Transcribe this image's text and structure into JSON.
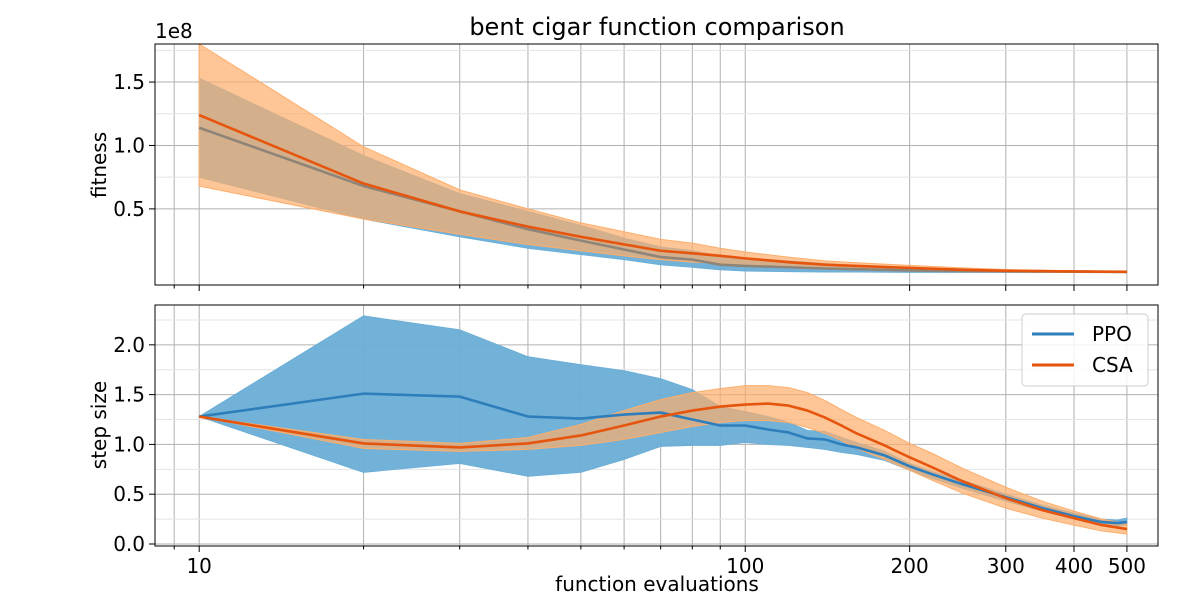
{
  "chart_data": {
    "title": "bent cigar function comparison",
    "xlabel": "function evaluations",
    "x_scale": "log",
    "x_tick_labels": [
      "10",
      "100",
      "200",
      "300",
      "400",
      "500"
    ],
    "grid": true,
    "legend_position": "upper-right (lower panel)",
    "colors": {
      "ppo": "#2e7ebc",
      "ppo_band": "#6baed6",
      "csa": "#e6550d",
      "csa_band": "#fdae6b",
      "overlap_band": "#b89a86"
    },
    "panels": [
      {
        "id": "fitness",
        "type": "line",
        "ylabel": "fitness",
        "y_offset_label": "1e8",
        "y_tick_labels": [
          "0.5",
          "1.0",
          "1.5"
        ],
        "y_ticks": [
          0.5,
          1.0,
          1.5
        ],
        "ylim": [
          -0.1,
          1.8
        ],
        "series": [
          {
            "name": "PPO",
            "x": [
              10,
              20,
              30,
              40,
              50,
              60,
              70,
              80,
              90,
              100,
              120,
              140,
              160,
              200,
              250,
              300,
              400,
              500
            ],
            "mean": [
              1.14,
              0.68,
              0.48,
              0.34,
              0.25,
              0.18,
              0.12,
              0.1,
              0.06,
              0.05,
              0.04,
              0.03,
              0.025,
              0.015,
              0.01,
              0.008,
              0.005,
              0.003
            ],
            "lower": [
              0.75,
              0.42,
              0.28,
              0.19,
              0.14,
              0.1,
              0.06,
              0.04,
              0.02,
              0.01,
              0.005,
              0.003,
              0.002,
              0.0,
              0.0,
              0.0,
              0.0,
              0.0
            ],
            "upper": [
              1.53,
              0.92,
              0.62,
              0.48,
              0.37,
              0.27,
              0.2,
              0.17,
              0.13,
              0.11,
              0.09,
              0.07,
              0.05,
              0.035,
              0.025,
              0.018,
              0.012,
              0.007
            ]
          },
          {
            "name": "CSA",
            "x": [
              10,
              20,
              30,
              40,
              50,
              60,
              70,
              80,
              90,
              100,
              120,
              140,
              160,
              200,
              250,
              300,
              400,
              500
            ],
            "mean": [
              1.24,
              0.7,
              0.48,
              0.36,
              0.28,
              0.22,
              0.17,
              0.15,
              0.13,
              0.11,
              0.08,
              0.06,
              0.05,
              0.035,
              0.02,
              0.012,
              0.007,
              0.004
            ],
            "lower": [
              0.68,
              0.42,
              0.3,
              0.22,
              0.17,
              0.13,
              0.1,
              0.08,
              0.07,
              0.05,
              0.04,
              0.03,
              0.02,
              0.01,
              0.005,
              0.002,
              0.0,
              0.0
            ],
            "upper": [
              1.8,
              0.99,
              0.65,
              0.5,
              0.39,
              0.32,
              0.26,
              0.23,
              0.19,
              0.16,
              0.12,
              0.09,
              0.075,
              0.055,
              0.035,
              0.022,
              0.012,
              0.008
            ]
          }
        ]
      },
      {
        "id": "stepsize",
        "type": "line",
        "ylabel": "step size",
        "y_tick_labels": [
          "0.0",
          "0.5",
          "1.0",
          "1.5",
          "2.0"
        ],
        "y_ticks": [
          0.0,
          0.5,
          1.0,
          1.5,
          2.0
        ],
        "ylim": [
          -0.02,
          2.4
        ],
        "series": [
          {
            "name": "PPO",
            "x": [
              10,
              20,
              30,
              40,
              50,
              60,
              70,
              80,
              90,
              100,
              110,
              120,
              130,
              140,
              150,
              160,
              180,
              200,
              220,
              250,
              300,
              350,
              400,
              450,
              480,
              500
            ],
            "mean": [
              1.28,
              1.51,
              1.48,
              1.28,
              1.26,
              1.3,
              1.32,
              1.25,
              1.19,
              1.19,
              1.15,
              1.12,
              1.06,
              1.05,
              1.0,
              0.97,
              0.89,
              0.78,
              0.7,
              0.6,
              0.47,
              0.36,
              0.28,
              0.22,
              0.21,
              0.22
            ],
            "lower": [
              1.28,
              0.72,
              0.81,
              0.68,
              0.72,
              0.85,
              0.98,
              0.99,
              0.99,
              1.02,
              1.0,
              0.99,
              0.97,
              0.95,
              0.92,
              0.9,
              0.84,
              0.74,
              0.66,
              0.56,
              0.43,
              0.33,
              0.25,
              0.19,
              0.18,
              0.19
            ],
            "upper": [
              1.28,
              2.29,
              2.15,
              1.88,
              1.8,
              1.74,
              1.66,
              1.55,
              1.38,
              1.33,
              1.28,
              1.22,
              1.14,
              1.13,
              1.07,
              1.02,
              0.93,
              0.81,
              0.73,
              0.64,
              0.5,
              0.39,
              0.31,
              0.25,
              0.24,
              0.26
            ]
          },
          {
            "name": "CSA",
            "x": [
              10,
              20,
              30,
              40,
              50,
              60,
              70,
              80,
              90,
              100,
              110,
              120,
              130,
              140,
              150,
              160,
              180,
              200,
              220,
              250,
              300,
              350,
              400,
              450,
              500
            ],
            "mean": [
              1.28,
              1.01,
              0.97,
              1.01,
              1.09,
              1.19,
              1.28,
              1.34,
              1.38,
              1.4,
              1.41,
              1.39,
              1.34,
              1.27,
              1.19,
              1.11,
              0.99,
              0.87,
              0.77,
              0.63,
              0.46,
              0.34,
              0.26,
              0.19,
              0.15
            ],
            "lower": [
              1.28,
              0.96,
              0.93,
              0.95,
              0.99,
              1.05,
              1.12,
              1.18,
              1.22,
              1.24,
              1.24,
              1.22,
              1.17,
              1.11,
              1.04,
              0.96,
              0.85,
              0.74,
              0.64,
              0.51,
              0.36,
              0.26,
              0.19,
              0.13,
              0.1
            ],
            "upper": [
              1.28,
              1.05,
              1.01,
              1.07,
              1.2,
              1.34,
              1.45,
              1.52,
              1.56,
              1.59,
              1.59,
              1.57,
              1.52,
              1.44,
              1.35,
              1.27,
              1.14,
              1.01,
              0.91,
              0.76,
              0.57,
              0.43,
              0.33,
              0.25,
              0.2
            ]
          }
        ]
      }
    ]
  }
}
